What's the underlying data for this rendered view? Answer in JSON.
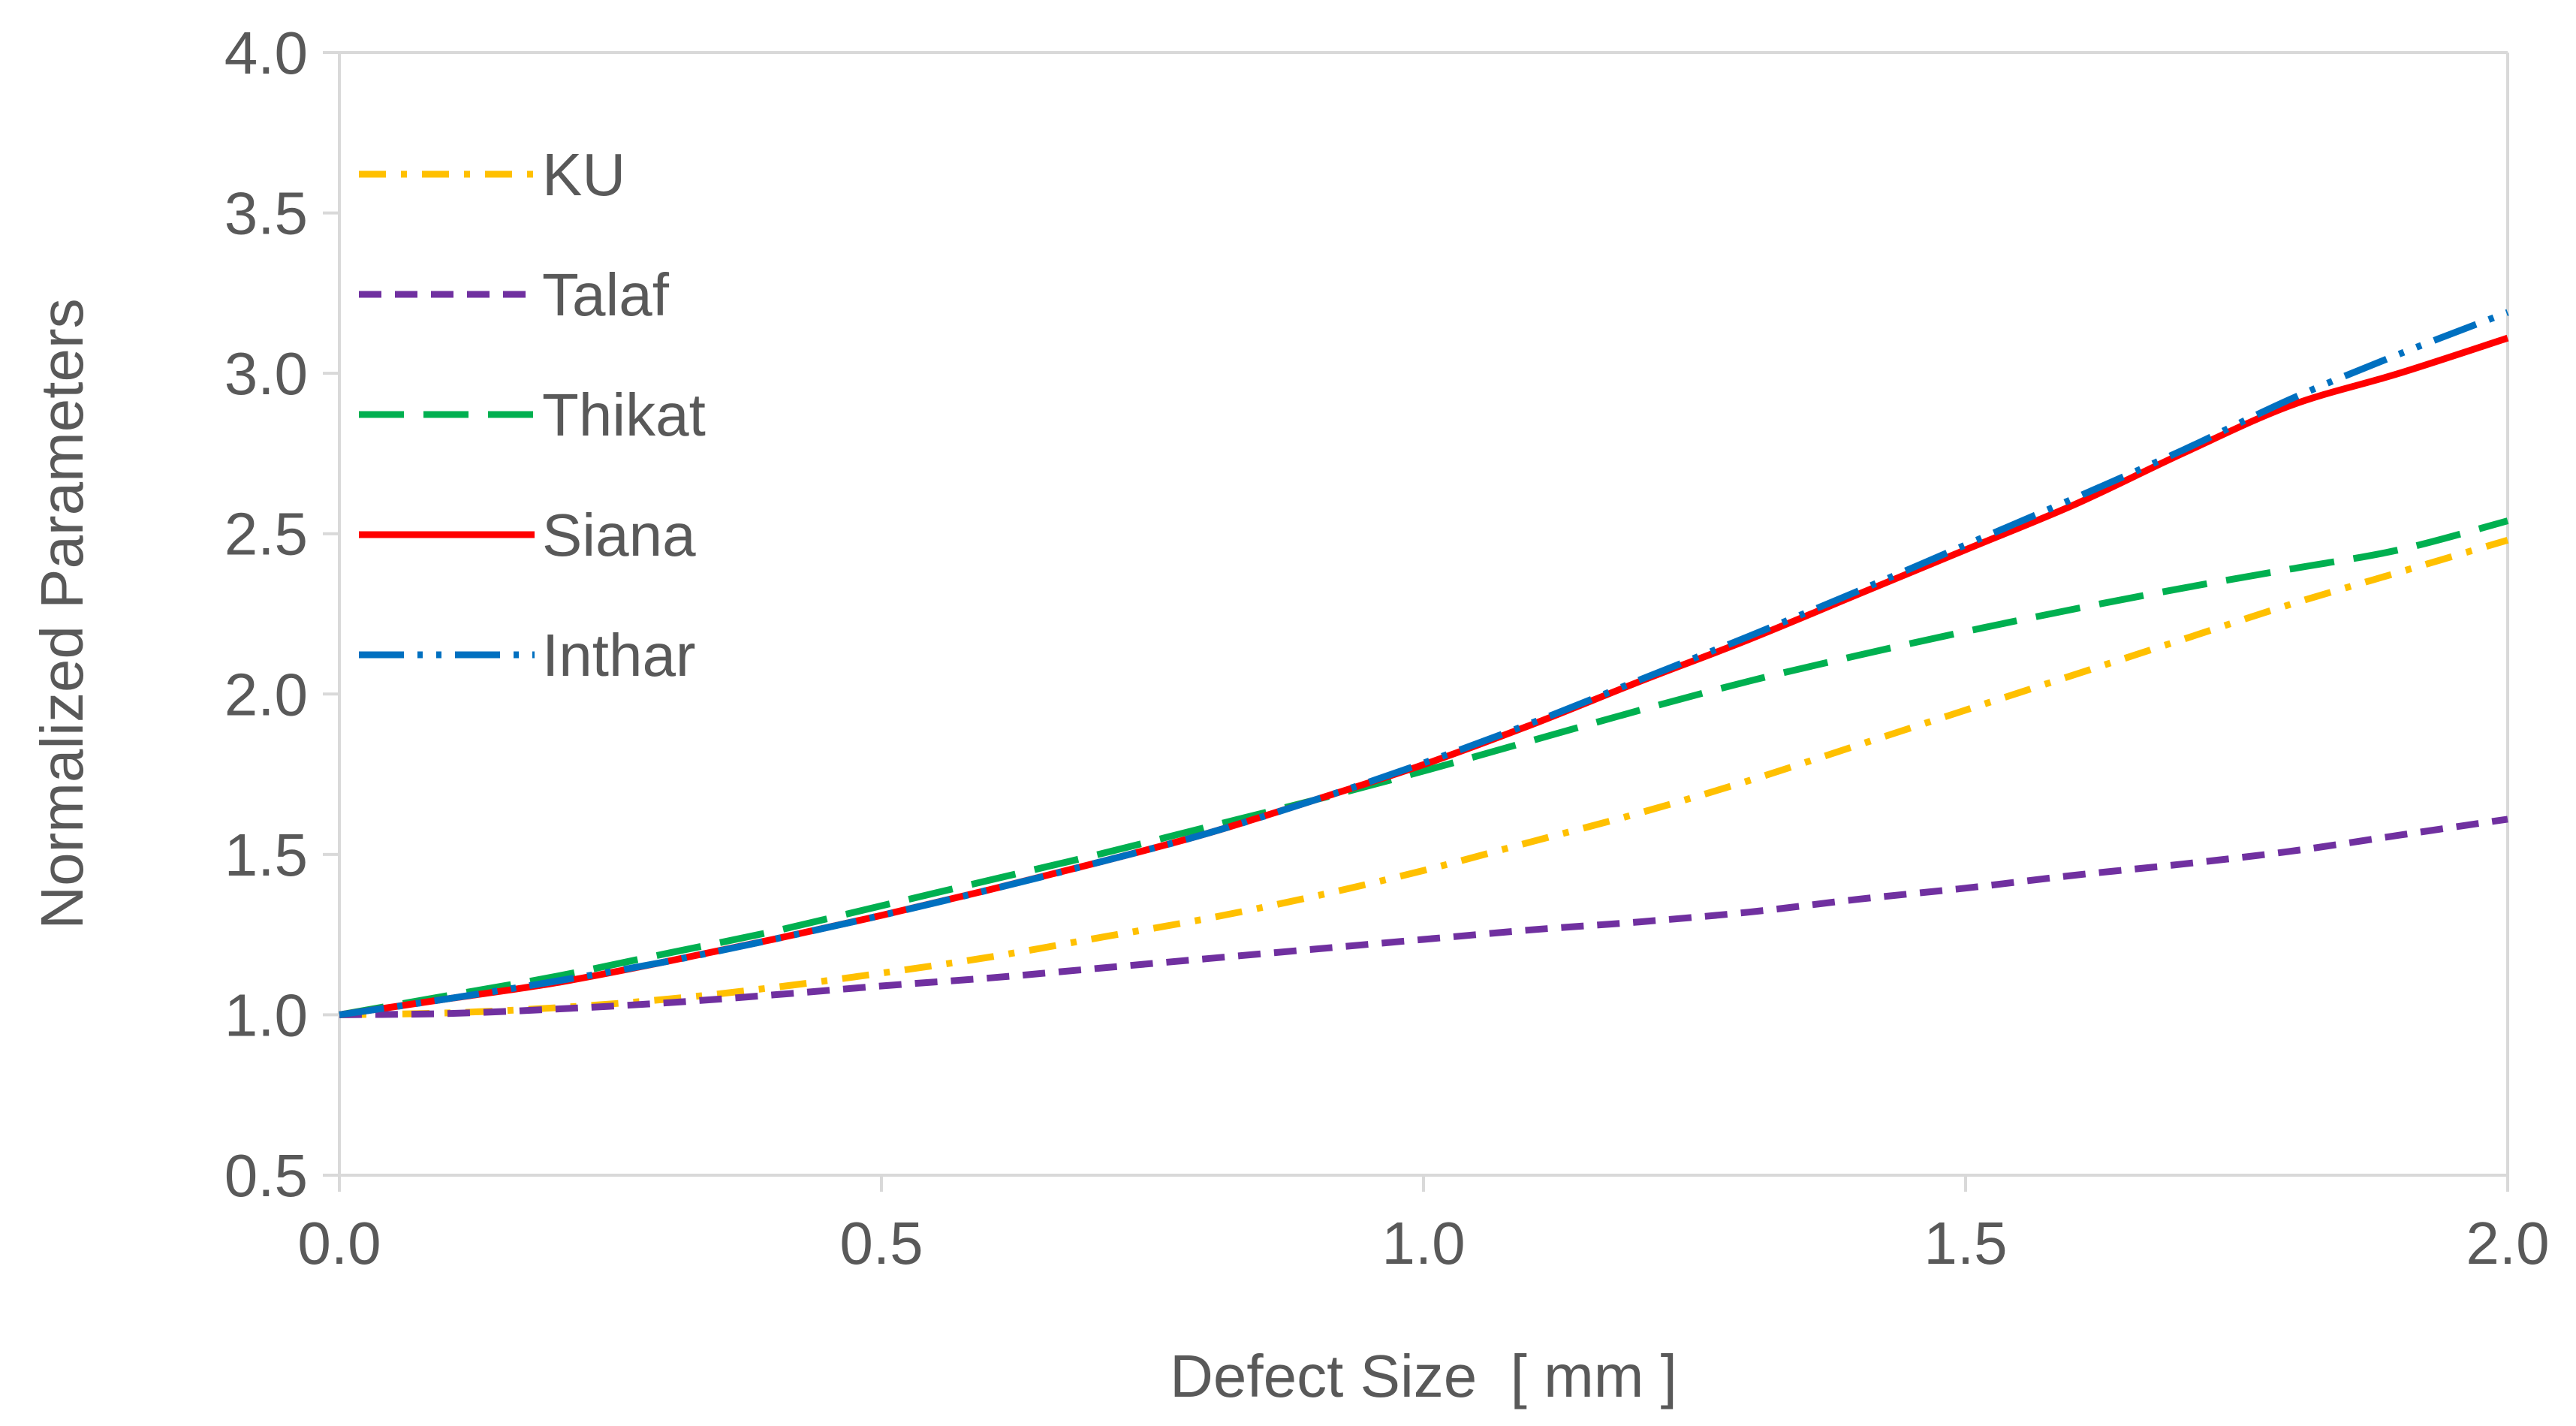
{
  "chart_data": {
    "type": "line",
    "title": "",
    "xlabel": "Defect Size  [ mm ]",
    "ylabel": "Normalized Parameters",
    "xlim": [
      0.0,
      2.0
    ],
    "ylim": [
      0.5,
      4.0
    ],
    "x_ticks": [
      "0.0",
      "0.5",
      "1.0",
      "1.5",
      "2.0"
    ],
    "y_ticks": [
      "0.5",
      "1.0",
      "1.5",
      "2.0",
      "2.5",
      "3.0",
      "3.5",
      "4.0"
    ],
    "grid": false,
    "legend_position": "top-left",
    "x": [
      0.0,
      0.1,
      0.2,
      0.3,
      0.4,
      0.5,
      0.6,
      0.7,
      0.8,
      0.9,
      1.0,
      1.1,
      1.2,
      1.3,
      1.4,
      1.5,
      1.6,
      1.7,
      1.8,
      1.9,
      2.0
    ],
    "series": [
      {
        "name": "KU",
        "color": "#FFC000",
        "dash": "dash-dot",
        "values": [
          1.0,
          1.006,
          1.022,
          1.048,
          1.085,
          1.13,
          1.18,
          1.24,
          1.3,
          1.37,
          1.45,
          1.54,
          1.63,
          1.73,
          1.84,
          1.95,
          2.06,
          2.17,
          2.28,
          2.38,
          2.48
        ]
      },
      {
        "name": "Talaf",
        "color": "#7030A0",
        "dash": "short-dash",
        "values": [
          1.0,
          1.004,
          1.018,
          1.037,
          1.062,
          1.09,
          1.115,
          1.145,
          1.175,
          1.205,
          1.235,
          1.265,
          1.29,
          1.32,
          1.36,
          1.395,
          1.435,
          1.47,
          1.51,
          1.56,
          1.61
        ]
      },
      {
        "name": "Thikat",
        "color": "#00B050",
        "dash": "long-dash",
        "values": [
          1.0,
          1.06,
          1.12,
          1.19,
          1.26,
          1.34,
          1.42,
          1.5,
          1.585,
          1.67,
          1.76,
          1.855,
          1.95,
          2.04,
          2.12,
          2.195,
          2.265,
          2.33,
          2.39,
          2.45,
          2.54
        ]
      },
      {
        "name": "Siana",
        "color": "#FF0000",
        "dash": "solid",
        "values": [
          1.0,
          1.05,
          1.1,
          1.165,
          1.235,
          1.31,
          1.39,
          1.475,
          1.565,
          1.67,
          1.78,
          1.905,
          2.04,
          2.17,
          2.31,
          2.45,
          2.59,
          2.75,
          2.9,
          3.0,
          3.11
        ]
      },
      {
        "name": "Inthar",
        "color": "#0070C0",
        "dash": "long-dash-dot-dot",
        "values": [
          1.0,
          1.05,
          1.105,
          1.165,
          1.235,
          1.31,
          1.39,
          1.475,
          1.565,
          1.67,
          1.785,
          1.91,
          2.045,
          2.18,
          2.32,
          2.465,
          2.61,
          2.76,
          2.92,
          3.06,
          3.19
        ]
      }
    ]
  }
}
